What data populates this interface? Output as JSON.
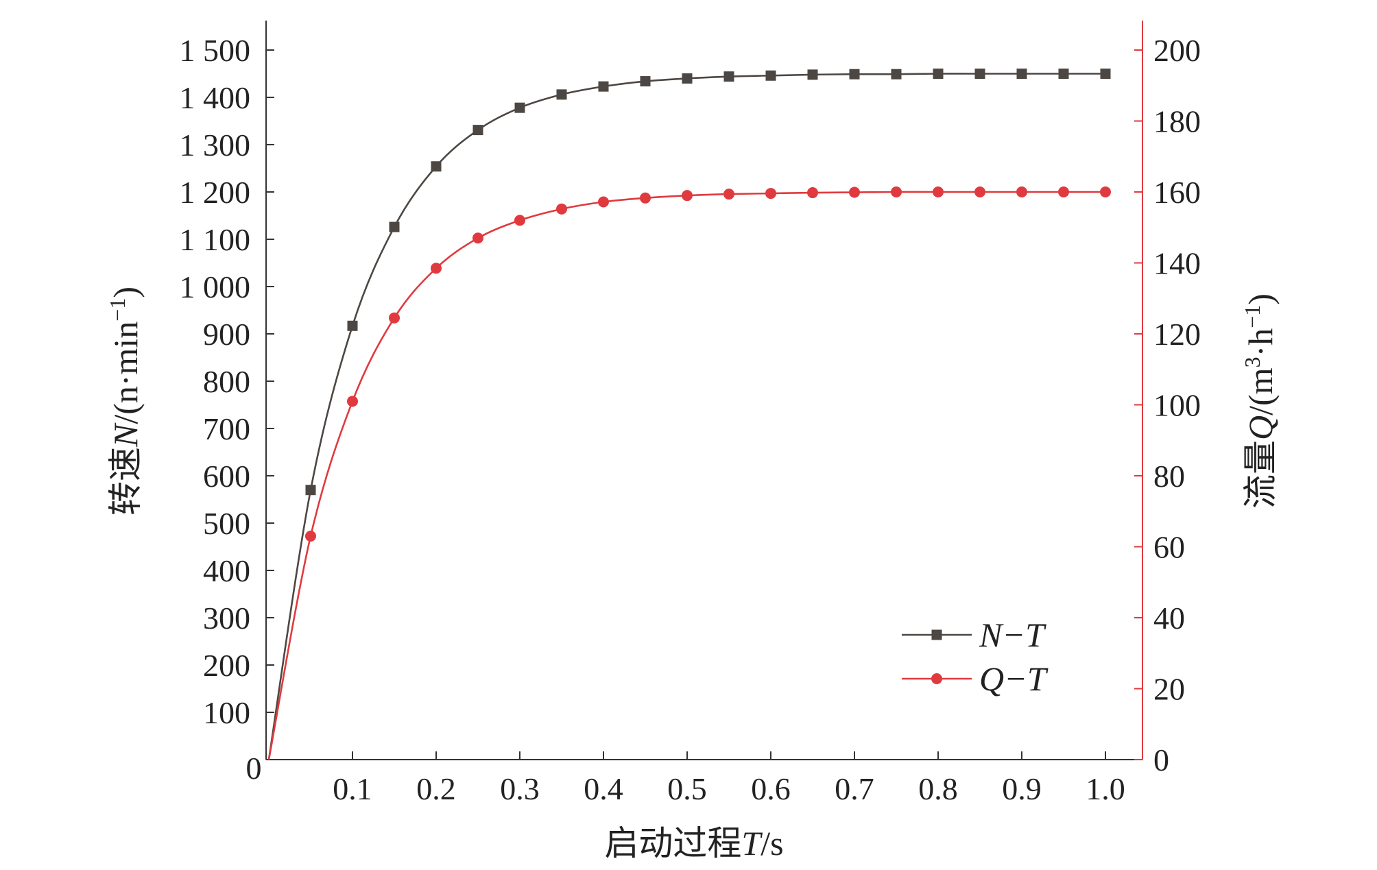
{
  "chart_data": {
    "type": "line",
    "x": [
      0,
      0.05,
      0.1,
      0.15,
      0.2,
      0.25,
      0.3,
      0.35,
      0.4,
      0.45,
      0.5,
      0.55,
      0.6,
      0.65,
      0.7,
      0.75,
      0.8,
      0.85,
      0.9,
      0.95,
      1.0
    ],
    "x_ticks": [
      0.1,
      0.2,
      0.3,
      0.4,
      0.5,
      0.6,
      0.7,
      0.8,
      0.9,
      1.0
    ],
    "x_tick_labels": [
      "0.1",
      "0.2",
      "0.3",
      "0.4",
      "0.5",
      "0.6",
      "0.7",
      "0.8",
      "0.9",
      "1.0"
    ],
    "origin_label": "0",
    "xlabel": {
      "prefix": "启动过程",
      "var": "T",
      "suffix": "/s"
    },
    "xlim": [
      0,
      1.03
    ],
    "y_left": {
      "label": {
        "prefix": "转速",
        "var": "N",
        "suffix": "/(n·min",
        "sup": "−1",
        "close": ")"
      },
      "lim": [
        0,
        1500
      ],
      "ticks": [
        100,
        200,
        300,
        400,
        500,
        600,
        700,
        800,
        900,
        1000,
        1100,
        1200,
        1300,
        1400,
        1500
      ],
      "tick_labels": [
        "100",
        "200",
        "300",
        "400",
        "500",
        "600",
        "700",
        "800",
        "900",
        "1 000",
        "1 100",
        "1 200",
        "1 300",
        "1 400",
        "1 500"
      ]
    },
    "y_right": {
      "label": {
        "prefix": "流量",
        "var": "Q",
        "suffix": "/(m",
        "sup1": "3",
        "mid": "·h",
        "sup2": "−1",
        "close": ")"
      },
      "lim": [
        0,
        200
      ],
      "ticks": [
        0,
        20,
        40,
        60,
        80,
        100,
        120,
        140,
        160,
        180,
        200
      ],
      "tick_labels": [
        "0",
        "20",
        "40",
        "60",
        "80",
        "100",
        "120",
        "140",
        "160",
        "180",
        "200"
      ],
      "color": "#e03a3e"
    },
    "series": [
      {
        "name": "N−T",
        "axis": "left",
        "marker": "square",
        "color": "#4d4743",
        "values": [
          0,
          570,
          917,
          1126,
          1254,
          1331,
          1378,
          1406,
          1423,
          1434,
          1440,
          1444,
          1446,
          1448,
          1449,
          1449,
          1450,
          1450,
          1450,
          1450,
          1450
        ]
      },
      {
        "name": "Q−T",
        "axis": "right",
        "marker": "circle",
        "color": "#e03a3e",
        "values": [
          0,
          63,
          101,
          124.5,
          138.5,
          147,
          152,
          155.2,
          157.2,
          158.3,
          159,
          159.4,
          159.6,
          159.8,
          159.9,
          160,
          160,
          160,
          160,
          160,
          160
        ]
      }
    ],
    "legend_position": "lower-right",
    "grid": false
  }
}
